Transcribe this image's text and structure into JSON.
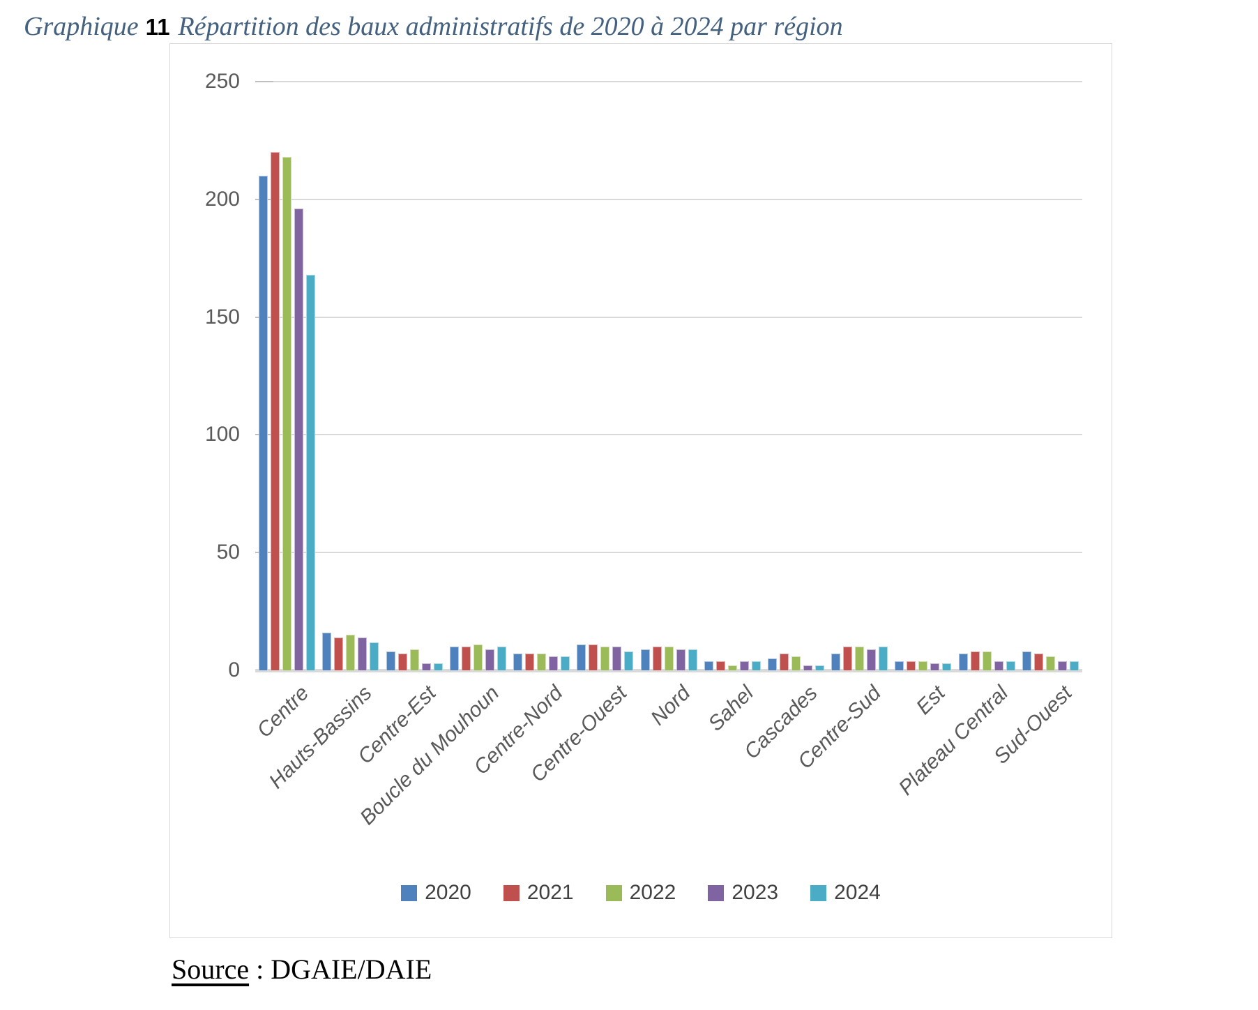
{
  "title": {
    "prefix": "Graphique",
    "number": "11",
    "text": "Répartition des baux administratifs de 2020 à 2024 par région"
  },
  "source": {
    "label": "Source",
    "separator": " : ",
    "value": "DGAIE/DAIE"
  },
  "chart_data": {
    "type": "bar",
    "title": "Répartition des baux administratifs de 2020 à 2024 par région",
    "categories": [
      "Centre",
      "Hauts-Bassins",
      "Centre-Est",
      "Boucle du Mouhoun",
      "Centre-Nord",
      "Centre-Ouest",
      "Nord",
      "Sahel",
      "Cascades",
      "Centre-Sud",
      "Est",
      "Plateau Central",
      "Sud-Ouest"
    ],
    "series": [
      {
        "name": "2020",
        "color": "#4F81BD",
        "values": [
          210,
          16,
          8,
          10,
          7,
          11,
          9,
          4,
          5,
          7,
          4,
          7,
          8
        ]
      },
      {
        "name": "2021",
        "color": "#C0504D",
        "values": [
          220,
          14,
          7,
          10,
          7,
          11,
          10,
          4,
          7,
          10,
          4,
          8,
          7
        ]
      },
      {
        "name": "2022",
        "color": "#9BBB59",
        "values": [
          218,
          15,
          9,
          11,
          7,
          10,
          10,
          2,
          6,
          10,
          4,
          8,
          6
        ]
      },
      {
        "name": "2023",
        "color": "#8064A2",
        "values": [
          196,
          14,
          3,
          9,
          6,
          10,
          9,
          4,
          2,
          9,
          3,
          4,
          4
        ]
      },
      {
        "name": "2024",
        "color": "#4BACC6",
        "values": [
          168,
          12,
          3,
          10,
          6,
          8,
          9,
          4,
          2,
          10,
          3,
          4,
          4
        ]
      }
    ],
    "xlabel": "",
    "ylabel": "",
    "ylim": [
      0,
      250
    ],
    "yticks": [
      0,
      50,
      100,
      150,
      200,
      250
    ],
    "grid": "horizontal",
    "legend_position": "bottom",
    "colors": {
      "gridline": "#d9d9d9",
      "axis_line": "#d9d9d9",
      "tick_mark": "#bfbfbf",
      "label_text": "#595959",
      "legend_text": "#404040",
      "frame_border": "#d7d7d7",
      "title_text": "#44617f"
    }
  }
}
